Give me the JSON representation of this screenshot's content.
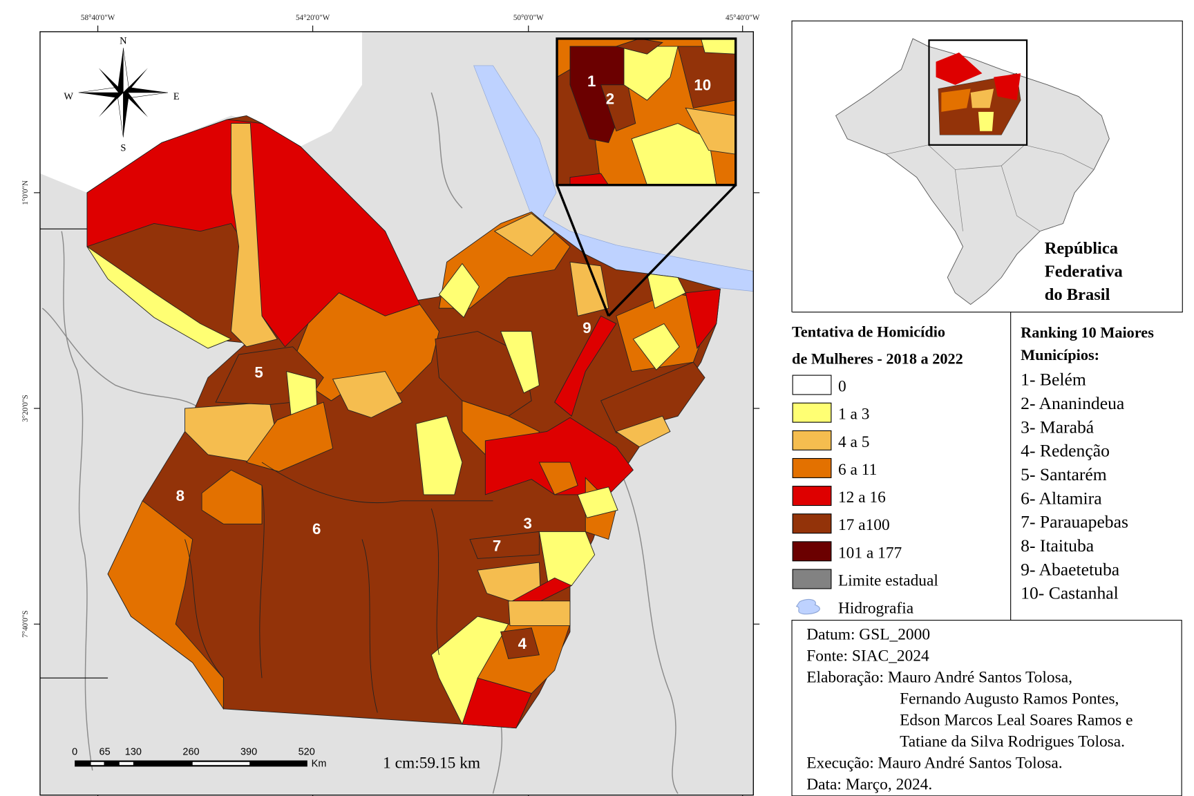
{
  "map": {
    "top_ticks": [
      "58°40'0\"W",
      "54°20'0\"W",
      "50°0'0\"W",
      "45°40'0\"W"
    ],
    "left_ticks": [
      "1°0'0\"N",
      "3°20'0\"S",
      "7°40'0\"S"
    ],
    "compass": {
      "n": "N",
      "s": "S",
      "e": "E",
      "w": "W"
    },
    "labels": [
      "1",
      "2",
      "3",
      "4",
      "5",
      "6",
      "7",
      "8",
      "9",
      "10"
    ],
    "scale": {
      "ticks": [
        "0",
        "65",
        "130",
        "260",
        "390",
        "520"
      ],
      "unit": "Km",
      "ratio": "1 cm:59.15 km"
    }
  },
  "inset": {
    "title_lines": [
      "República",
      "Federativa",
      "do Brasil"
    ]
  },
  "legend": {
    "title_lines": [
      "Tentativa  de  Homicídio",
      "de Mulheres - 2018 a 2022"
    ],
    "items": [
      {
        "label": "0",
        "color": "#ffffff"
      },
      {
        "label": "1 a 3",
        "color": "#ffff73"
      },
      {
        "label": "4 a 5",
        "color": "#f5bd4f"
      },
      {
        "label": "6 a 11",
        "color": "#e37100"
      },
      {
        "label": "12 a 16",
        "color": "#de0000"
      },
      {
        "label": "17 a100",
        "color": "#933309"
      },
      {
        "label": "101 a 177",
        "color": "#6b0000"
      },
      {
        "label": "Limite estadual",
        "color": "#828282"
      },
      {
        "label": "Hidrografia",
        "color": "#bed2ff"
      }
    ]
  },
  "ranking": {
    "title_lines": [
      "Ranking 10 Maiores",
      "Municípios:"
    ],
    "items": [
      "1- Belém",
      "2- Ananindeua",
      "3- Marabá",
      "4- Redenção",
      "5- Santarém",
      "6- Altamira",
      "7- Parauapebas",
      "8- Itaituba",
      "9- Abaetetuba",
      "10- Castanhal"
    ]
  },
  "credits": {
    "lines": [
      "Datum: GSL_2000",
      "Fonte: SIAC_2024",
      "Elaboração: Mauro André Santos Tolosa,",
      "Fernando Augusto Ramos Pontes,",
      "Edson Marcos Leal Soares Ramos e",
      "Tatiane da Silva Rodrigues Tolosa.",
      "Execução: Mauro André Santos Tolosa.",
      "Data: Março, 2024."
    ]
  }
}
